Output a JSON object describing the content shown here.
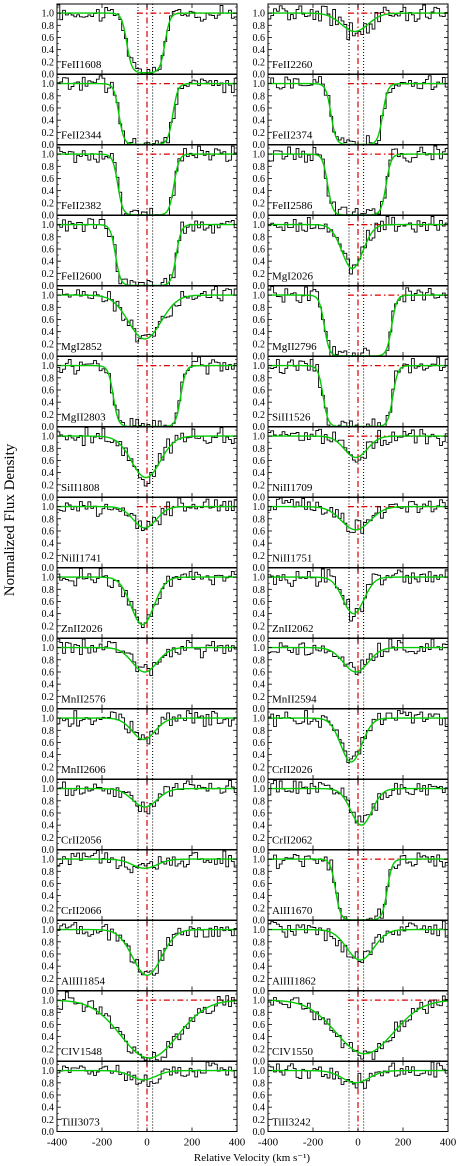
{
  "chart_data": {
    "type": "line",
    "ylabel": "Normalized Flux Density",
    "xlabel": "Relative Velocity (km s⁻¹)",
    "xlim": [
      -400,
      400
    ],
    "ylim": [
      0.0,
      1.15
    ],
    "x_ticks": [
      -400,
      -200,
      0,
      200,
      400
    ],
    "x_tick_labels": [
      "-400",
      "-200",
      "0",
      "200",
      "400"
    ],
    "y_ticks": [
      0.0,
      0.2,
      0.4,
      0.6,
      0.8,
      1.0
    ],
    "y_tick_labels": [
      "0.0",
      "0.2",
      "0.4",
      "0.6",
      "0.8",
      "1.0"
    ],
    "reference_lines": {
      "black_dotted_velocities": [
        -40,
        25
      ],
      "red_dashdot_velocity": 0,
      "red_dashdot_flux": 1.0,
      "colors": {
        "spectrum": "#000000",
        "fit": "#00cc00",
        "velocity_marker": "#dd0000",
        "component_marker": "#000000"
      }
    },
    "panels": [
      {
        "ion": "FeII1608",
        "min_flux": 0.02,
        "center": -5,
        "fwhm": 170,
        "shape": "box",
        "red_line": true
      },
      {
        "ion": "FeII2260",
        "min_flux": 0.7,
        "center": -15,
        "fwhm": 140,
        "shape": "gauss",
        "red_line": true
      },
      {
        "ion": "FeII2344",
        "min_flux": 0.0,
        "center": -5,
        "fwhm": 240,
        "shape": "box",
        "red_line": true
      },
      {
        "ion": "FeII2374",
        "min_flux": 0.0,
        "center": -5,
        "fwhm": 230,
        "shape": "box",
        "red_line": true
      },
      {
        "ion": "FeII2382",
        "min_flux": 0.0,
        "center": -5,
        "fwhm": 250,
        "shape": "box",
        "red_line": true
      },
      {
        "ion": "FeII2586",
        "min_flux": 0.0,
        "center": -5,
        "fwhm": 260,
        "shape": "box",
        "red_line": true
      },
      {
        "ion": "FeII2600",
        "min_flux": 0.0,
        "center": -5,
        "fwhm": 270,
        "shape": "box",
        "red_line": false
      },
      {
        "ion": "MgI2026",
        "min_flux": 0.28,
        "center": -25,
        "fwhm": 110,
        "shape": "gauss",
        "red_line": true
      },
      {
        "ion": "MgI2852",
        "min_flux": 0.28,
        "center": -10,
        "fwhm": 170,
        "shape": "gauss",
        "red_line": false
      },
      {
        "ion": "MgII2796",
        "min_flux": 0.0,
        "center": 0,
        "fwhm": 300,
        "shape": "box",
        "red_line": true
      },
      {
        "ion": "MgII2803",
        "min_flux": 0.0,
        "center": 0,
        "fwhm": 300,
        "shape": "box",
        "red_line": true
      },
      {
        "ion": "SiII1526",
        "min_flux": 0.0,
        "center": 0,
        "fwhm": 310,
        "shape": "box",
        "red_line": true
      },
      {
        "ion": "SiII1808",
        "min_flux": 0.32,
        "center": -5,
        "fwhm": 150,
        "shape": "gauss",
        "red_line": false
      },
      {
        "ion": "NiII1709",
        "min_flux": 0.65,
        "center": -10,
        "fwhm": 120,
        "shape": "gauss",
        "red_line": true
      },
      {
        "ion": "NiII1741",
        "min_flux": 0.65,
        "center": -10,
        "fwhm": 120,
        "shape": "gauss",
        "red_line": true
      },
      {
        "ion": "NiII1751",
        "min_flux": 0.62,
        "center": -10,
        "fwhm": 150,
        "shape": "gauss",
        "red_line": true
      },
      {
        "ion": "ZnII2026",
        "min_flux": 0.22,
        "center": -20,
        "fwhm": 120,
        "shape": "gauss",
        "red_line": false
      },
      {
        "ion": "ZnII2062",
        "min_flux": 0.4,
        "center": -20,
        "fwhm": 110,
        "shape": "gauss",
        "red_line": false
      },
      {
        "ion": "MnII2576",
        "min_flux": 0.6,
        "center": -10,
        "fwhm": 130,
        "shape": "gauss",
        "red_line": false
      },
      {
        "ion": "MnII2594",
        "min_flux": 0.6,
        "center": -10,
        "fwhm": 130,
        "shape": "gauss",
        "red_line": false
      },
      {
        "ion": "MnII2606",
        "min_flux": 0.65,
        "center": -15,
        "fwhm": 120,
        "shape": "gauss",
        "red_line": false
      },
      {
        "ion": "CrII2026",
        "min_flux": 0.28,
        "center": -30,
        "fwhm": 110,
        "shape": "gauss",
        "red_line": false
      },
      {
        "ion": "CrII2056",
        "min_flux": 0.7,
        "center": -10,
        "fwhm": 130,
        "shape": "gauss",
        "red_line": false
      },
      {
        "ion": "CrII2062",
        "min_flux": 0.4,
        "center": 15,
        "fwhm": 110,
        "shape": "gauss",
        "red_line": false
      },
      {
        "ion": "CrII2066",
        "min_flux": 0.85,
        "center": -10,
        "fwhm": 130,
        "shape": "gauss",
        "red_line": false
      },
      {
        "ion": "AlII1670",
        "min_flux": 0.0,
        "center": 15,
        "fwhm": 230,
        "shape": "box",
        "red_line": true
      },
      {
        "ion": "AlIII1854",
        "min_flux": 0.25,
        "center": 0,
        "fwhm": 150,
        "shape": "gauss",
        "red_line": false
      },
      {
        "ion": "AlIII1862",
        "min_flux": 0.5,
        "center": 10,
        "fwhm": 140,
        "shape": "gauss",
        "red_line": false
      },
      {
        "ion": "CIV1548",
        "min_flux": 0.05,
        "center": 10,
        "fwhm": 300,
        "shape": "gauss",
        "red_line": true
      },
      {
        "ion": "CIV1550",
        "min_flux": 0.12,
        "center": 30,
        "fwhm": 300,
        "shape": "gauss",
        "red_line": true
      },
      {
        "ion": "TiII3073",
        "min_flux": 0.85,
        "center": -15,
        "fwhm": 130,
        "shape": "gauss",
        "red_line": false
      },
      {
        "ion": "TiII3242",
        "min_flux": 0.8,
        "center": -10,
        "fwhm": 140,
        "shape": "gauss",
        "red_line": false
      }
    ]
  }
}
